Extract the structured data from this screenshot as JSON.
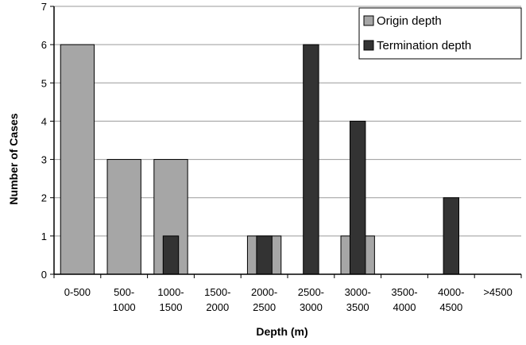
{
  "chart_data": {
    "type": "bar",
    "title": "",
    "xlabel": "Depth (m)",
    "ylabel": "Number of Cases",
    "ylim": [
      0,
      7
    ],
    "yticks": [
      0,
      1,
      2,
      3,
      4,
      5,
      6,
      7
    ],
    "grid": "horizontal",
    "legend_position": "top-right",
    "categories": [
      [
        "0-500"
      ],
      [
        "500-",
        "1000"
      ],
      [
        "1000-",
        "1500"
      ],
      [
        "1500-",
        "2000"
      ],
      [
        "2000-",
        "2500"
      ],
      [
        "2500-",
        "3000"
      ],
      [
        "3000-",
        "3500"
      ],
      [
        "3500-",
        "4000"
      ],
      [
        "4000-",
        "4500"
      ],
      [
        ">4500"
      ]
    ],
    "series": [
      {
        "name": "Origin depth",
        "color": "#a6a6a6",
        "values": [
          6,
          3,
          3,
          0,
          1,
          0,
          1,
          0,
          0,
          0
        ]
      },
      {
        "name": "Termination depth",
        "color": "#333333",
        "values": [
          0,
          0,
          1,
          0,
          1,
          6,
          4,
          0,
          2,
          0
        ]
      }
    ]
  }
}
